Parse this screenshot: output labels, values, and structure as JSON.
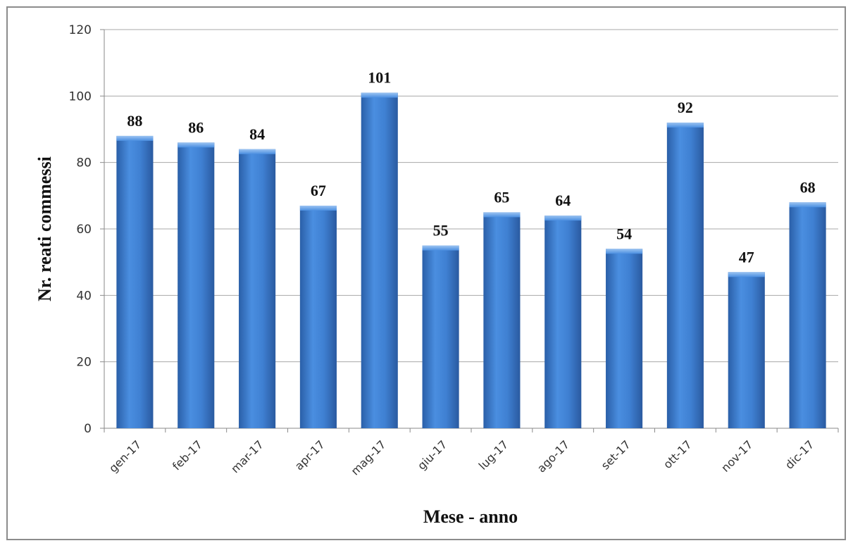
{
  "chart_data": {
    "type": "bar",
    "categories": [
      "gen-17",
      "feb-17",
      "mar-17",
      "apr-17",
      "mag-17",
      "giu-17",
      "lug-17",
      "ago-17",
      "set-17",
      "ott-17",
      "nov-17",
      "dic-17"
    ],
    "values": [
      88,
      86,
      84,
      67,
      101,
      55,
      65,
      64,
      54,
      92,
      47,
      68
    ],
    "title": "",
    "xlabel": "Mese - anno",
    "ylabel": "Nr. reati commessi",
    "ylim": [
      0,
      120
    ],
    "yticks": [
      0,
      20,
      40,
      60,
      80,
      100,
      120
    ],
    "grid": true,
    "legend": "none",
    "bar_color": "#3d7fcf"
  }
}
